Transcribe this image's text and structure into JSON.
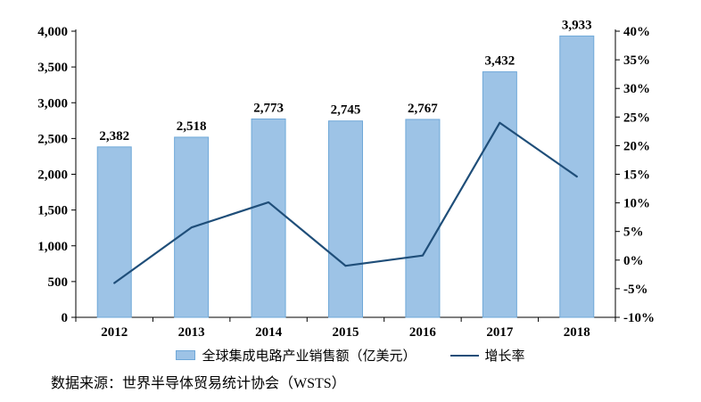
{
  "chart_data": {
    "type": "combo",
    "categories": [
      "2012",
      "2013",
      "2014",
      "2015",
      "2016",
      "2017",
      "2018"
    ],
    "series": [
      {
        "name": "全球集成电路产业销售额（亿美元）",
        "type": "bar",
        "axis": "left",
        "values": [
          2382,
          2518,
          2773,
          2745,
          2767,
          3432,
          3933
        ],
        "labels": [
          "2,382",
          "2,518",
          "2,773",
          "2,745",
          "2,767",
          "3,432",
          "3,933"
        ],
        "color": "#9DC3E6",
        "border_color": "#6FA8D8"
      },
      {
        "name": "增长率",
        "type": "line",
        "axis": "right",
        "values": [
          -4.0,
          5.7,
          10.1,
          -1.0,
          0.8,
          24.0,
          14.6
        ],
        "color": "#1F4E79"
      }
    ],
    "left_axis": {
      "min": 0,
      "max": 4000,
      "step": 500,
      "tick_labels": [
        "0",
        "500",
        "1,000",
        "1,500",
        "2,000",
        "2,500",
        "3,000",
        "3,500",
        "4,000"
      ]
    },
    "right_axis": {
      "min": -10,
      "max": 40,
      "step": 5,
      "tick_labels": [
        "-10%",
        "-5%",
        "0%",
        "5%",
        "10%",
        "15%",
        "20%",
        "25%",
        "30%",
        "35%",
        "40%"
      ]
    },
    "grid": false,
    "legend_position": "bottom",
    "axis_color": "#000000",
    "label_color": "#000000"
  },
  "source_note": "数据来源：世界半导体贸易统计协会（WSTS）"
}
